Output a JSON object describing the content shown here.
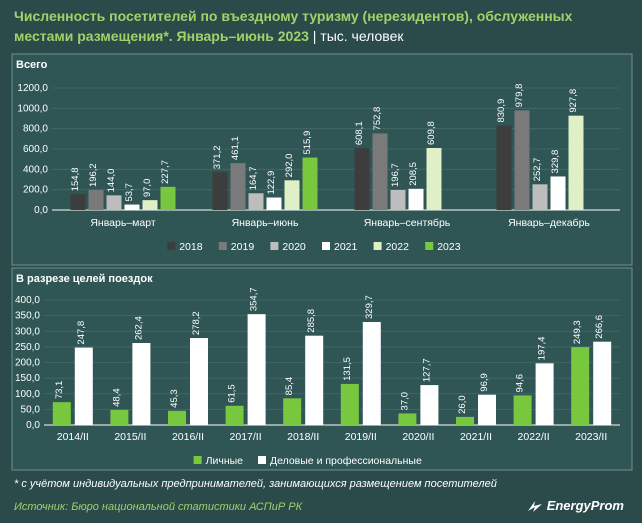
{
  "header": {
    "title": "Численность посетителей по въездному туризму (нерезидентов), обслуженных местами размещения*. Январь–июнь 2023",
    "unit": "| тыс. человек"
  },
  "chart_data": [
    {
      "type": "bar",
      "title": "Всего",
      "categories": [
        "Январь–март",
        "Январь–июнь",
        "Январь–сентябрь",
        "Январь–декабрь"
      ],
      "series": [
        {
          "name": "2018",
          "color": "#3d3d3d",
          "values": [
            154.8,
            371.2,
            608.1,
            830.9
          ],
          "labels": [
            "154,8",
            "371,2",
            "608,1",
            "830,9"
          ]
        },
        {
          "name": "2019",
          "color": "#7a7a7a",
          "values": [
            196.2,
            461.1,
            752.8,
            979.8
          ],
          "labels": [
            "196,2",
            "461,1",
            "752,8",
            "979,8"
          ]
        },
        {
          "name": "2020",
          "color": "#bdbdbd",
          "values": [
            144.0,
            164.7,
            196.7,
            252.7
          ],
          "labels": [
            "144,0",
            "164,7",
            "196,7",
            "252,7"
          ]
        },
        {
          "name": "2021",
          "color": "#ffffff",
          "values": [
            53.7,
            122.9,
            208.5,
            329.8
          ],
          "labels": [
            "53,7",
            "122,9",
            "208,5",
            "329,8"
          ]
        },
        {
          "name": "2022",
          "color": "#dff0c6",
          "values": [
            97.0,
            292.0,
            609.8,
            927.8
          ],
          "labels": [
            "97,0",
            "292,0",
            "609,8",
            "927,8"
          ]
        },
        {
          "name": "2023",
          "color": "#77c83f",
          "values": [
            227.7,
            515.9,
            null,
            null
          ],
          "labels": [
            "227,7",
            "515,9",
            "",
            ""
          ]
        }
      ],
      "ylim": [
        0,
        1200
      ],
      "yticks": [
        0,
        200,
        400,
        600,
        800,
        1000,
        1200
      ],
      "ytick_labels": [
        "0,0",
        "200,0",
        "400,0",
        "600,0",
        "800,0",
        "1000,0",
        "1200,0"
      ],
      "legend": "bottom-center"
    },
    {
      "type": "bar",
      "title": "В разрезе целей поездок",
      "categories": [
        "2014/II",
        "2015/II",
        "2016/II",
        "2017/II",
        "2018/II",
        "2019/II",
        "2020/II",
        "2021/II",
        "2022/II",
        "2023/II"
      ],
      "series": [
        {
          "name": "Личные",
          "color": "#77c83f",
          "values": [
            73.1,
            48.4,
            45.3,
            61.5,
            85.4,
            131.5,
            37.0,
            26.0,
            94.6,
            249.3
          ],
          "labels": [
            "73,1",
            "48,4",
            "45,3",
            "61,5",
            "85,4",
            "131,5",
            "37,0",
            "26,0",
            "94,6",
            "249,3"
          ]
        },
        {
          "name": "Деловые и профессиональные",
          "color": "#ffffff",
          "values": [
            247.8,
            262.4,
            278.2,
            354.7,
            285.8,
            329.7,
            127.7,
            96.9,
            197.4,
            266.6
          ],
          "labels": [
            "247,8",
            "262,4",
            "278,2",
            "354,7",
            "285,8",
            "329,7",
            "127,7",
            "96,9",
            "197,4",
            "266,6"
          ]
        }
      ],
      "ylim": [
        0,
        400
      ],
      "yticks": [
        0,
        50,
        100,
        150,
        200,
        250,
        300,
        350,
        400
      ],
      "ytick_labels": [
        "0,0",
        "50,0",
        "100,0",
        "150,0",
        "200,0",
        "250,0",
        "300,0",
        "350,0",
        "400,0"
      ],
      "legend": "bottom-center"
    }
  ],
  "footer": {
    "note": "* с учётом индивидуальных предпринимателей, занимающихся размещением посетителей",
    "source": "Источник: Бюро национальной статистики АСПиР РК",
    "brand": "EnergyProm"
  }
}
